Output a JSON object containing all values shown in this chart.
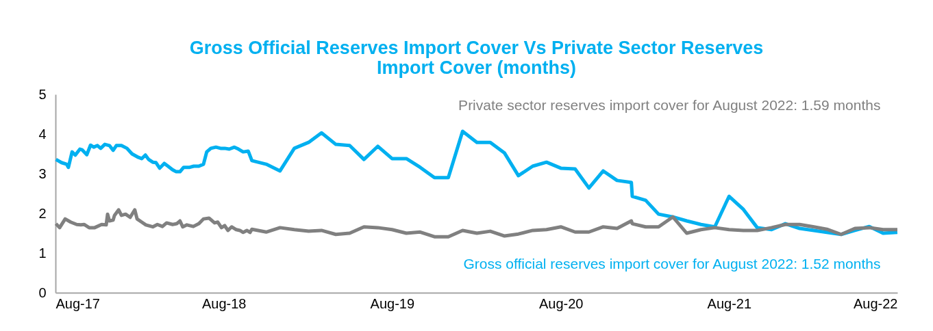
{
  "chart_data": {
    "type": "line",
    "title": [
      "Gross Official  Reserves Import Cover Vs Private Sector Reserves",
      "Import Cover (months)"
    ],
    "xlim": [
      "2017-08-01",
      "2022-08-01"
    ],
    "xticks": [
      {
        "value": "2017-08-01",
        "label": "Aug-17"
      },
      {
        "value": "2018-08-01",
        "label": "Aug-18"
      },
      {
        "value": "2019-08-01",
        "label": "Aug-19"
      },
      {
        "value": "2020-08-01",
        "label": "Aug-20"
      },
      {
        "value": "2021-08-01",
        "label": "Aug-21"
      },
      {
        "value": "2022-08-01",
        "label": "Aug-22"
      }
    ],
    "ylim": [
      0,
      5
    ],
    "yticks": [
      0,
      1,
      2,
      3,
      4,
      5
    ],
    "grid": false,
    "legend": false,
    "marker": "none",
    "line_style": "solid",
    "annotations": [
      "Private sector reserves import cover for August 2022: 1.59 months",
      "Gross official reserves import cover for August 2022: 1.52 months"
    ],
    "series": [
      {
        "color": "#00b0f0",
        "x": [
          "2017-08-02",
          "2017-08-14",
          "2017-08-25",
          "2017-08-29",
          "2017-09-06",
          "2017-09-13",
          "2017-09-23",
          "2017-09-28",
          "2017-10-08",
          "2017-10-16",
          "2017-10-23",
          "2017-10-31",
          "2017-11-07",
          "2017-11-16",
          "2017-11-26",
          "2017-12-04",
          "2017-12-11",
          "2017-12-22",
          "2018-01-03",
          "2018-01-14",
          "2018-01-28",
          "2018-02-04",
          "2018-02-12",
          "2018-02-19",
          "2018-02-28",
          "2018-03-07",
          "2018-03-15",
          "2018-03-25",
          "2018-04-02",
          "2018-04-12",
          "2018-04-20",
          "2018-04-28",
          "2018-05-06",
          "2018-05-19",
          "2018-05-28",
          "2018-06-08",
          "2018-06-18",
          "2018-06-25",
          "2018-07-04",
          "2018-07-15",
          "2018-07-25",
          "2018-08-03",
          "2018-08-13",
          "2018-08-24",
          "2018-09-02",
          "2018-09-12",
          "2018-09-23",
          "2018-10-01",
          "2018-11-01",
          "2018-12-01",
          "2019-01-01",
          "2019-02-01",
          "2019-03-01",
          "2019-04-01",
          "2019-05-01",
          "2019-06-01",
          "2019-07-01",
          "2019-08-01",
          "2019-09-01",
          "2019-10-01",
          "2019-11-01",
          "2019-12-01",
          "2020-01-01",
          "2020-02-01",
          "2020-03-01",
          "2020-04-01",
          "2020-05-01",
          "2020-06-01",
          "2020-07-01",
          "2020-08-01",
          "2020-09-01",
          "2020-10-01",
          "2020-11-01",
          "2020-12-01",
          "2021-01-01",
          "2021-01-03",
          "2021-02-01",
          "2021-03-01",
          "2021-04-01",
          "2021-05-01",
          "2021-06-01",
          "2021-07-01",
          "2021-08-01",
          "2021-09-01",
          "2021-10-01",
          "2021-11-01",
          "2021-12-01",
          "2022-01-01",
          "2022-02-01",
          "2022-03-01",
          "2022-04-01",
          "2022-05-01",
          "2022-06-01",
          "2022-07-01",
          "2022-08-01"
        ],
        "values": [
          3.36,
          3.28,
          3.24,
          3.16,
          3.55,
          3.47,
          3.62,
          3.6,
          3.48,
          3.72,
          3.67,
          3.71,
          3.64,
          3.74,
          3.71,
          3.59,
          3.71,
          3.71,
          3.64,
          3.5,
          3.41,
          3.38,
          3.47,
          3.36,
          3.29,
          3.28,
          3.14,
          3.26,
          3.19,
          3.1,
          3.05,
          3.05,
          3.16,
          3.16,
          3.19,
          3.19,
          3.24,
          3.55,
          3.64,
          3.67,
          3.64,
          3.64,
          3.62,
          3.67,
          3.62,
          3.55,
          3.57,
          3.33,
          3.24,
          3.07,
          3.64,
          3.79,
          4.03,
          3.74,
          3.71,
          3.36,
          3.69,
          3.38,
          3.38,
          3.16,
          2.9,
          2.9,
          4.07,
          3.79,
          3.79,
          3.52,
          2.95,
          3.19,
          3.29,
          3.14,
          3.12,
          2.64,
          3.07,
          2.83,
          2.78,
          2.43,
          2.33,
          1.98,
          1.91,
          1.81,
          1.72,
          1.66,
          2.43,
          2.1,
          1.64,
          1.59,
          1.74,
          1.62,
          1.57,
          1.52,
          1.47,
          1.57,
          1.67,
          1.5,
          1.52
        ]
      },
      {
        "color": "#808080",
        "x": [
          "2017-08-02",
          "2017-08-10",
          "2017-08-22",
          "2017-09-03",
          "2017-09-16",
          "2017-09-25",
          "2017-10-02",
          "2017-10-13",
          "2017-10-25",
          "2017-11-09",
          "2017-11-19",
          "2017-11-22",
          "2017-11-26",
          "2017-12-04",
          "2017-12-07",
          "2017-12-16",
          "2017-12-22",
          "2017-12-31",
          "2018-01-10",
          "2018-01-20",
          "2018-01-25",
          "2018-02-04",
          "2018-02-13",
          "2018-02-28",
          "2018-03-10",
          "2018-03-21",
          "2018-03-30",
          "2018-04-12",
          "2018-04-21",
          "2018-04-28",
          "2018-05-04",
          "2018-05-13",
          "2018-05-27",
          "2018-06-08",
          "2018-06-18",
          "2018-06-30",
          "2018-07-12",
          "2018-07-19",
          "2018-07-27",
          "2018-08-03",
          "2018-08-10",
          "2018-08-18",
          "2018-08-28",
          "2018-09-05",
          "2018-09-12",
          "2018-09-20",
          "2018-09-27",
          "2018-10-01",
          "2018-11-01",
          "2018-12-01",
          "2019-01-01",
          "2019-02-01",
          "2019-03-01",
          "2019-04-01",
          "2019-05-01",
          "2019-06-01",
          "2019-07-01",
          "2019-08-01",
          "2019-09-01",
          "2019-10-01",
          "2019-11-01",
          "2019-12-01",
          "2020-01-01",
          "2020-02-01",
          "2020-03-01",
          "2020-04-01",
          "2020-05-01",
          "2020-06-01",
          "2020-07-01",
          "2020-08-01",
          "2020-09-01",
          "2020-10-01",
          "2020-11-01",
          "2020-12-01",
          "2021-01-01",
          "2021-01-03",
          "2021-02-01",
          "2021-03-01",
          "2021-04-01",
          "2021-05-01",
          "2021-06-01",
          "2021-07-01",
          "2021-08-01",
          "2021-09-01",
          "2021-10-01",
          "2021-11-01",
          "2021-12-01",
          "2022-01-01",
          "2022-02-01",
          "2022-03-01",
          "2022-04-01",
          "2022-05-01",
          "2022-06-01",
          "2022-07-01",
          "2022-08-01"
        ],
        "values": [
          1.74,
          1.64,
          1.86,
          1.78,
          1.72,
          1.71,
          1.72,
          1.64,
          1.64,
          1.72,
          1.71,
          1.98,
          1.81,
          1.83,
          1.95,
          2.09,
          1.95,
          1.98,
          1.9,
          2.09,
          1.86,
          1.78,
          1.71,
          1.66,
          1.72,
          1.67,
          1.76,
          1.72,
          1.74,
          1.81,
          1.66,
          1.71,
          1.67,
          1.74,
          1.86,
          1.88,
          1.76,
          1.78,
          1.64,
          1.69,
          1.57,
          1.66,
          1.59,
          1.57,
          1.52,
          1.57,
          1.52,
          1.6,
          1.53,
          1.64,
          1.59,
          1.55,
          1.57,
          1.47,
          1.5,
          1.66,
          1.64,
          1.59,
          1.5,
          1.53,
          1.41,
          1.41,
          1.57,
          1.5,
          1.55,
          1.43,
          1.48,
          1.57,
          1.59,
          1.66,
          1.53,
          1.53,
          1.66,
          1.62,
          1.81,
          1.74,
          1.66,
          1.66,
          1.91,
          1.5,
          1.59,
          1.64,
          1.59,
          1.57,
          1.57,
          1.64,
          1.72,
          1.72,
          1.66,
          1.6,
          1.47,
          1.62,
          1.64,
          1.59,
          1.59
        ]
      }
    ]
  }
}
